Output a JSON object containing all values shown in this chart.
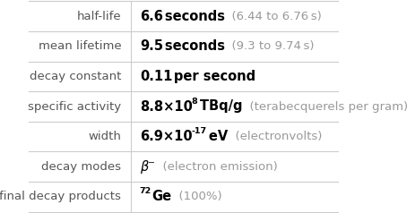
{
  "rows": [
    {
      "label": "half-life",
      "value_parts": [
        {
          "text": "6.6",
          "style": "bold",
          "color": "#000000"
        },
        {
          "text": " seconds",
          "style": "bold",
          "color": "#000000"
        },
        {
          "text": "  (6.44 to 6.76 s)",
          "style": "normal",
          "color": "#999999"
        }
      ]
    },
    {
      "label": "mean lifetime",
      "value_parts": [
        {
          "text": "9.5",
          "style": "bold",
          "color": "#000000"
        },
        {
          "text": " seconds",
          "style": "bold",
          "color": "#000000"
        },
        {
          "text": "  (9.3 to 9.74 s)",
          "style": "normal",
          "color": "#999999"
        }
      ]
    },
    {
      "label": "decay constant",
      "value_parts": [
        {
          "text": "0.11",
          "style": "bold",
          "color": "#000000"
        },
        {
          "text": " per second",
          "style": "bold",
          "color": "#000000"
        }
      ]
    },
    {
      "label": "specific activity",
      "value_parts": [
        {
          "text": "8.8×10",
          "style": "bold",
          "color": "#000000",
          "sup": "8"
        },
        {
          "text": " TBq/g",
          "style": "bold",
          "color": "#000000"
        },
        {
          "text": "  (terabecquerels per gram)",
          "style": "normal",
          "color": "#999999"
        }
      ]
    },
    {
      "label": "width",
      "value_parts": [
        {
          "text": "6.9×10",
          "style": "bold",
          "color": "#000000",
          "sup": "-17"
        },
        {
          "text": " eV",
          "style": "bold",
          "color": "#000000"
        },
        {
          "text": "  (electronvolts)",
          "style": "normal",
          "color": "#999999"
        }
      ]
    },
    {
      "label": "decay modes",
      "value_parts": [
        {
          "text": "β",
          "style": "italic",
          "color": "#000000",
          "sup": "−"
        },
        {
          "text": "  (electron emission)",
          "style": "normal",
          "color": "#999999"
        }
      ]
    },
    {
      "label": "final decay products",
      "value_parts": [
        {
          "text": "Ge",
          "style": "bold",
          "color": "#000000",
          "sup": "72",
          "sup_pre": true
        },
        {
          "text": "  (100%)",
          "style": "normal",
          "color": "#999999"
        }
      ]
    }
  ],
  "col_split": 0.33,
  "background": "#ffffff",
  "label_color": "#555555",
  "grid_color": "#cccccc",
  "label_fontsize": 9.5,
  "value_fontsize": 10.5
}
